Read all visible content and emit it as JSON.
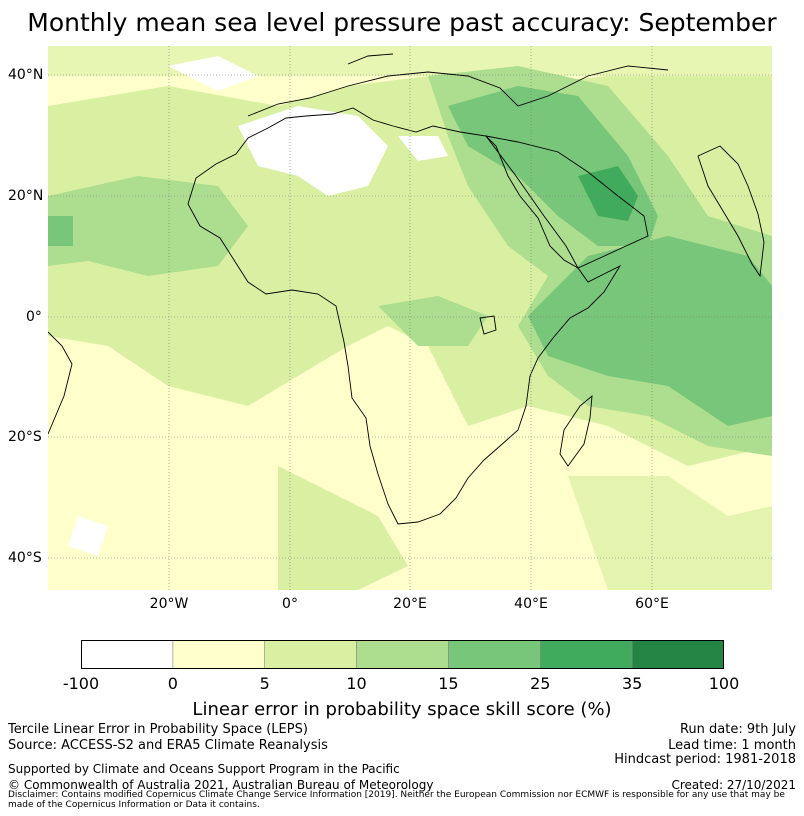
{
  "title": "Monthly mean sea level pressure past accuracy: September",
  "map": {
    "lat_labels": [
      "40°N",
      "20°N",
      "0°",
      "20°S",
      "40°S"
    ],
    "lon_labels": [
      "20°W",
      "0°",
      "20°E",
      "40°E",
      "60°E"
    ],
    "colors": {
      "white": "#ffffff",
      "c0_5": "#ffffcc",
      "c5_10": "#d9f0a3",
      "c10_15": "#addd8e",
      "c15_25": "#78c679",
      "c25_35": "#41ab5d",
      "c35_100": "#238443",
      "coast": "#000000",
      "grid": "#666666"
    }
  },
  "colorbar": {
    "ticks": [
      "-100",
      "0",
      "5",
      "10",
      "15",
      "25",
      "35",
      "100"
    ],
    "colors": [
      "#ffffff",
      "#ffffcc",
      "#d9f0a3",
      "#addd8e",
      "#78c679",
      "#41ab5d",
      "#238443"
    ],
    "label": "Linear error in probability space skill score (%)"
  },
  "footer": {
    "left_line1": "Tercile Linear Error in Probability Space (LEPS)",
    "left_line2": "Source: ACCESS-S2 and ERA5 Climate Reanalysis",
    "support": "Supported by Climate and Oceans Support Program in the Pacific",
    "copyright": "© Commonwealth of Australia 2021, Australian Bureau of Meteorology",
    "run_date": "Run date: 9th July",
    "lead_time": "Lead time: 1 month",
    "hindcast": "Hindcast period: 1981-2018",
    "created": "Created: 27/10/2021",
    "disclaimer": "Disclaimer: Contains modified Copernicus Climate Change Service Information [2019]. Neither the European Commission nor ECMWF is responsible for any use that may be made of the Copernicus Information or Data it contains."
  }
}
